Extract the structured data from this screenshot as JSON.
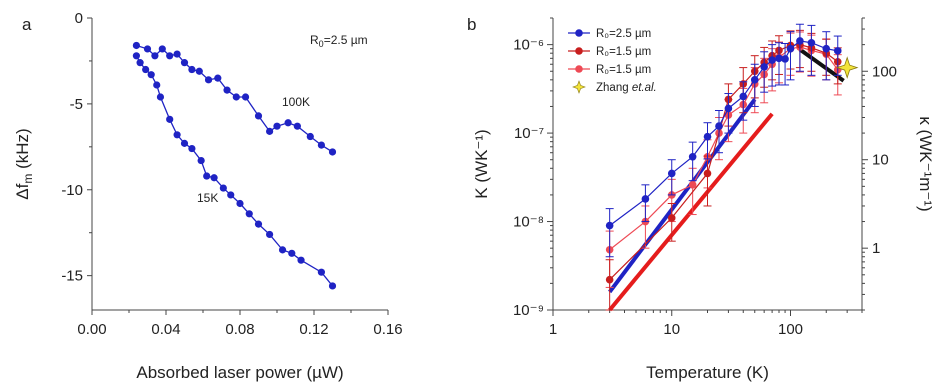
{
  "chart_data": [
    {
      "type": "line",
      "panel_label": "a",
      "xlabel": "Absorbed laser power (µW)",
      "ylabel": "Δf",
      "ylabel_sub": "m",
      "ylabel_unit": " (kHz)",
      "xlim": [
        0.0,
        0.16
      ],
      "ylim": [
        -17,
        0
      ],
      "xticks": [
        "0.00",
        "0.04",
        "0.08",
        "0.12",
        "0.16"
      ],
      "yticks": [
        "0",
        "-5",
        "-10",
        "-15"
      ],
      "annotation_main": "R",
      "annotation_sub": "0",
      "annotation_rest": "=2.5 µm",
      "colors": {
        "series": "#1f23c4",
        "axis": "#444444"
      },
      "series": [
        {
          "name": "100K",
          "x": [
            0.024,
            0.03,
            0.034,
            0.038,
            0.042,
            0.046,
            0.05,
            0.054,
            0.058,
            0.063,
            0.068,
            0.073,
            0.078,
            0.083,
            0.09,
            0.096,
            0.1,
            0.106,
            0.111,
            0.118,
            0.124,
            0.13
          ],
          "y": [
            -1.6,
            -1.8,
            -2.2,
            -1.8,
            -2.2,
            -2.1,
            -2.6,
            -3.0,
            -3.1,
            -3.6,
            -3.5,
            -4.2,
            -4.6,
            -4.6,
            -5.7,
            -6.6,
            -6.3,
            -6.1,
            -6.3,
            -6.9,
            -7.4,
            -7.8
          ]
        },
        {
          "name": "15K",
          "x": [
            0.024,
            0.026,
            0.029,
            0.032,
            0.035,
            0.037,
            0.042,
            0.046,
            0.05,
            0.054,
            0.059,
            0.062,
            0.066,
            0.071,
            0.075,
            0.08,
            0.085,
            0.09,
            0.096,
            0.103,
            0.108,
            0.113,
            0.124,
            0.13
          ],
          "y": [
            -2.2,
            -2.6,
            -3.0,
            -3.3,
            -3.9,
            -4.6,
            -5.9,
            -6.8,
            -7.3,
            -7.6,
            -8.3,
            -9.2,
            -9.3,
            -9.9,
            -10.3,
            -10.8,
            -11.4,
            -12.0,
            -12.6,
            -13.5,
            -13.7,
            -14.1,
            -14.8,
            -15.6
          ]
        }
      ]
    },
    {
      "type": "line",
      "panel_label": "b",
      "xlabel": "Temperature (K)",
      "ylabel": "K (WK⁻¹)",
      "y2label": "κ (WK⁻¹m⁻¹)",
      "xscale": "log",
      "yscale": "log",
      "xlim": [
        1,
        400
      ],
      "ylim": [
        1e-09,
        2e-06
      ],
      "y2lim": [
        0.2,
        400
      ],
      "xticks": [
        "1",
        "10",
        "100"
      ],
      "yticks": [
        "10⁻⁹",
        "10⁻⁸",
        "10⁻⁷",
        "10⁻⁶"
      ],
      "y2ticks": [
        "1",
        "10",
        "100"
      ],
      "legend_position": "top-left",
      "colors": {
        "blue": "#1f23c4",
        "red": "#c81e1e",
        "pink": "#ee4a55",
        "black": "#111111",
        "yellow": "#f2e33a"
      },
      "series": [
        {
          "name": "R₀=2.5 µm",
          "color": "#1f23c4",
          "x": [
            3,
            6,
            10,
            15,
            20,
            25,
            30,
            40,
            50,
            60,
            70,
            80,
            90,
            100,
            120,
            150,
            200,
            250
          ],
          "y": [
            9e-09,
            1.8e-08,
            3.5e-08,
            5.4e-08,
            9.1e-08,
            1.2e-07,
            1.9e-07,
            2.6e-07,
            4e-07,
            5.6e-07,
            6.7e-07,
            7e-07,
            6.9e-07,
            9e-07,
            1.1e-06,
            1.05e-06,
            9e-07,
            8.5e-07
          ],
          "err": [
            5e-09,
            8e-09,
            1.5e-08,
            2.5e-08,
            4e-08,
            6e-08,
            9e-08,
            1.2e-07,
            2e-07,
            2.7e-07,
            3.3e-07,
            3.5e-07,
            3.4e-07,
            5e-07,
            6e-07,
            6e-07,
            5e-07,
            4e-07
          ]
        },
        {
          "name": "R₀=1.5 µm",
          "color": "#c81e1e",
          "x": [
            3,
            10,
            20,
            30,
            40,
            50,
            60,
            70,
            80,
            100,
            120,
            150,
            200,
            250
          ],
          "y": [
            2.2e-09,
            1.1e-08,
            3.5e-08,
            2.4e-07,
            3.6e-07,
            5e-07,
            6.3e-07,
            7.5e-07,
            8.6e-07,
            9.8e-07,
            1e-06,
            9.2e-07,
            8e-07,
            6.4e-07
          ],
          "err": [
            1.5e-09,
            5e-09,
            2e-08,
            1.2e-07,
            1.9e-07,
            2.5e-07,
            3e-07,
            3.5e-07,
            4e-07,
            4.5e-07,
            4.5e-07,
            4.2e-07,
            3.5e-07,
            2.8e-07
          ]
        },
        {
          "name": "R₀=1.5 µm",
          "color": "#ee4a55",
          "x": [
            3,
            6,
            10,
            15,
            20,
            25,
            30,
            40,
            50,
            60,
            70,
            80,
            100,
            120,
            150,
            200,
            250
          ],
          "y": [
            4.8e-09,
            1e-08,
            2e-08,
            2.6e-08,
            5.4e-08,
            1e-07,
            1.6e-07,
            2.1e-07,
            3.6e-07,
            4.6e-07,
            6e-07,
            7.2e-07,
            9e-07,
            9.4e-07,
            8.6e-07,
            7.8e-07,
            5.2e-07
          ],
          "err": [
            3e-09,
            5e-09,
            1e-08,
            1.4e-08,
            3e-08,
            5e-08,
            8e-08,
            1.1e-07,
            1.9e-07,
            2.4e-07,
            3e-07,
            3.5e-07,
            4.5e-07,
            4.5e-07,
            4.2e-07,
            3.8e-07,
            2.5e-07
          ]
        },
        {
          "name": "Zhang et.al.",
          "name_plain": "Zhang ",
          "name_italic": "et.al.",
          "color": "#f2e33a",
          "x": [
            300
          ],
          "y": [
            5.5e-07
          ]
        }
      ],
      "fit_lines": [
        {
          "color": "#1f23c4",
          "x": [
            3,
            50
          ],
          "y": [
            1.6e-09,
            2.4e-07
          ]
        },
        {
          "color": "#e51c1c",
          "x": [
            3,
            70
          ],
          "y": [
            1e-09,
            1.65e-07
          ]
        },
        {
          "color": "#111111",
          "x": [
            120,
            280
          ],
          "y": [
            8.8e-07,
            3.9e-07
          ]
        }
      ]
    }
  ]
}
